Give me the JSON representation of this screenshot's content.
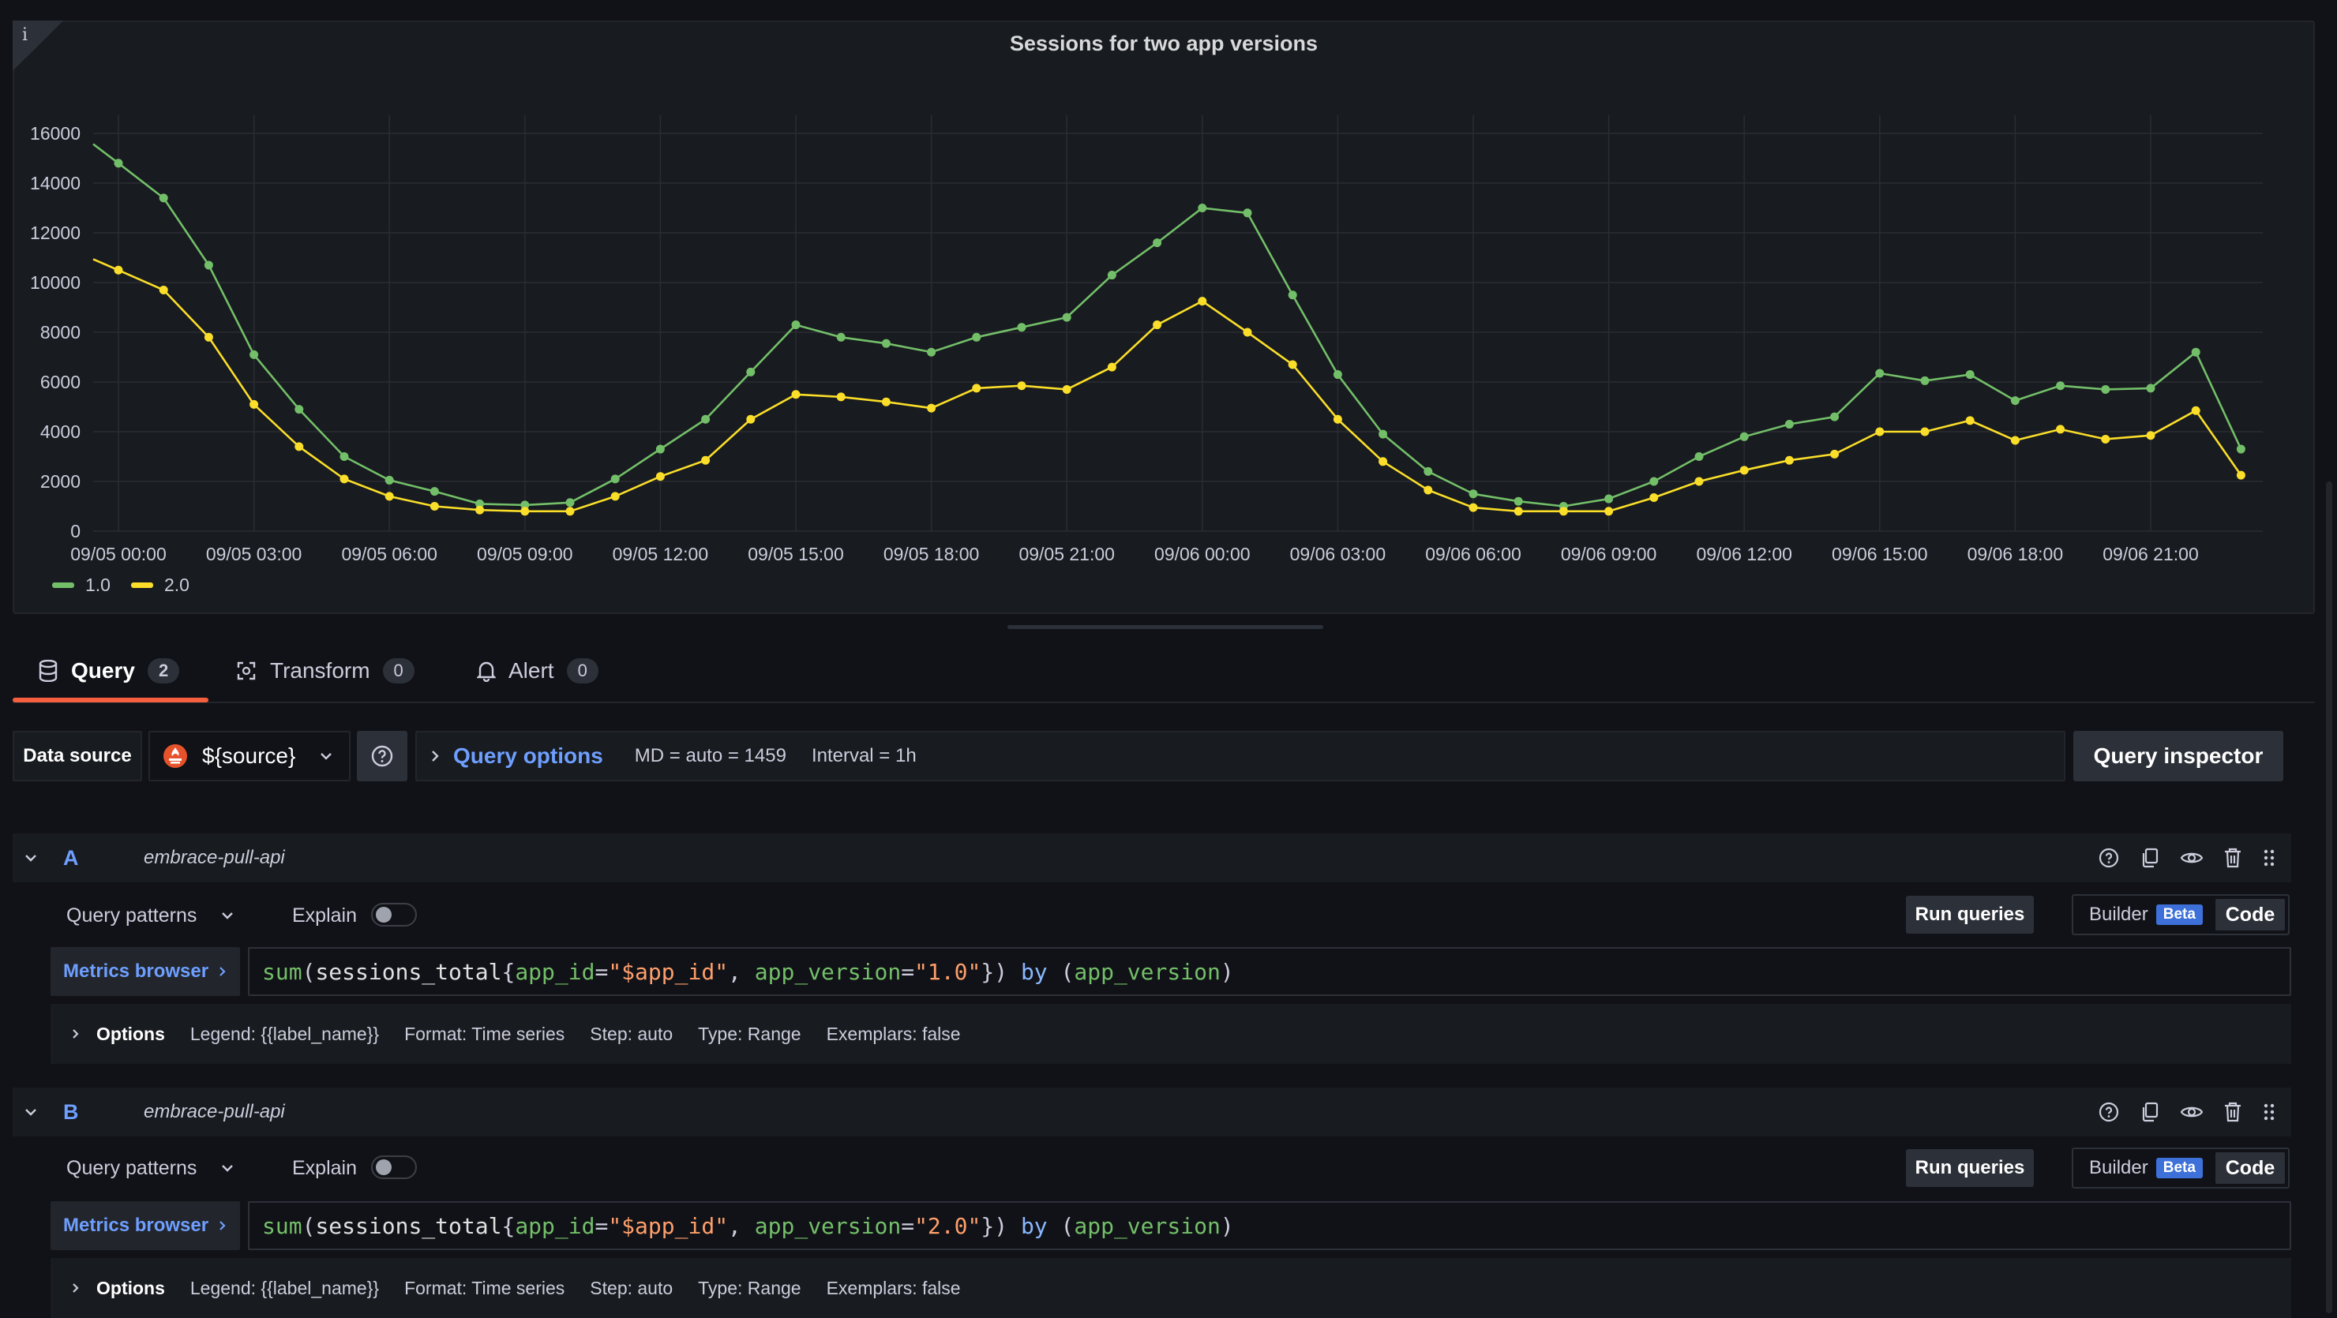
{
  "panel": {
    "title": "Sessions for two app versions",
    "info_icon": "i"
  },
  "chart_data": {
    "type": "line",
    "title": "Sessions for two app versions",
    "x": [
      "09/05 00:00",
      "09/05 01:00",
      "09/05 02:00",
      "09/05 03:00",
      "09/05 04:00",
      "09/05 05:00",
      "09/05 06:00",
      "09/05 07:00",
      "09/05 08:00",
      "09/05 09:00",
      "09/05 10:00",
      "09/05 11:00",
      "09/05 12:00",
      "09/05 13:00",
      "09/05 14:00",
      "09/05 15:00",
      "09/05 16:00",
      "09/05 17:00",
      "09/05 18:00",
      "09/05 19:00",
      "09/05 20:00",
      "09/05 21:00",
      "09/05 22:00",
      "09/05 23:00",
      "09/06 00:00",
      "09/06 01:00",
      "09/06 02:00",
      "09/06 03:00",
      "09/06 04:00",
      "09/06 05:00",
      "09/06 06:00",
      "09/06 07:00",
      "09/06 08:00",
      "09/06 09:00",
      "09/06 10:00",
      "09/06 11:00",
      "09/06 12:00",
      "09/06 13:00",
      "09/06 14:00",
      "09/06 15:00",
      "09/06 16:00",
      "09/06 17:00",
      "09/06 18:00",
      "09/06 19:00",
      "09/06 20:00",
      "09/06 21:00",
      "09/06 22:00",
      "09/06 23:00"
    ],
    "x_ticks": [
      "09/05 00:00",
      "09/05 03:00",
      "09/05 06:00",
      "09/05 09:00",
      "09/05 12:00",
      "09/05 15:00",
      "09/05 18:00",
      "09/05 21:00",
      "09/06 00:00",
      "09/06 03:00",
      "09/06 06:00",
      "09/06 09:00",
      "09/06 12:00",
      "09/06 15:00",
      "09/06 18:00",
      "09/06 21:00"
    ],
    "y_ticks": [
      "0",
      "2000",
      "4000",
      "6000",
      "8000",
      "10000",
      "12000",
      "14000",
      "16000"
    ],
    "ylim": [
      0,
      16000
    ],
    "grid": true,
    "legend": "bottom-left",
    "series": [
      {
        "name": "1.0",
        "color": "#73bf69",
        "values": [
          14800,
          13400,
          10700,
          7100,
          4900,
          3000,
          2050,
          1600,
          1100,
          1050,
          1150,
          2100,
          3300,
          4500,
          6400,
          8300,
          7800,
          7550,
          7200,
          7800,
          8200,
          8600,
          10300,
          11600,
          13000,
          12800,
          9500,
          6300,
          3900,
          2400,
          1500,
          1200,
          1000,
          1300,
          2000,
          3000,
          3800,
          4300,
          4600,
          6350,
          6050,
          6300,
          5250,
          5850,
          5700,
          5750,
          7200,
          3300
        ]
      },
      {
        "name": "2.0",
        "color": "#fade2a",
        "values": [
          10500,
          9700,
          7800,
          5100,
          3400,
          2100,
          1400,
          1000,
          850,
          800,
          800,
          1400,
          2200,
          2850,
          4500,
          5500,
          5400,
          5200,
          4950,
          5750,
          5850,
          5700,
          6600,
          8300,
          9250,
          8000,
          6700,
          4500,
          2800,
          1650,
          950,
          800,
          800,
          800,
          1350,
          2000,
          2450,
          2850,
          3100,
          4000,
          4000,
          4450,
          3650,
          4100,
          3700,
          3850,
          4850,
          2250
        ]
      }
    ]
  },
  "tabs": [
    {
      "label": "Query",
      "count": "2",
      "icon": "database-icon"
    },
    {
      "label": "Transform",
      "count": "0",
      "icon": "transform-icon"
    },
    {
      "label": "Alert",
      "count": "0",
      "icon": "bell-icon"
    }
  ],
  "toolbar": {
    "data_source_label": "Data source",
    "data_source_value": "${source}",
    "query_options_label": "Query options",
    "md_text": "MD = auto = 1459",
    "interval_text": "Interval = 1h",
    "query_inspector_label": "Query inspector"
  },
  "queries": [
    {
      "ref_id": "A",
      "datasource": "embrace-pull-api",
      "query_patterns_label": "Query patterns",
      "explain_label": "Explain",
      "run_label": "Run queries",
      "builder_label": "Builder",
      "beta_label": "Beta",
      "code_label": "Code",
      "metrics_browser_label": "Metrics browser",
      "expr": {
        "fn": "sum",
        "metric": "sessions_total",
        "l1": "app_id",
        "v1": "\"$app_id\"",
        "l2": "app_version",
        "v2": "\"1.0\"",
        "by": "by",
        "group": "app_version"
      },
      "options_label": "Options",
      "opt_legend": "Legend: {{label_name}}",
      "opt_format": "Format: Time series",
      "opt_step": "Step: auto",
      "opt_type": "Type: Range",
      "opt_exemplars": "Exemplars: false"
    },
    {
      "ref_id": "B",
      "datasource": "embrace-pull-api",
      "query_patterns_label": "Query patterns",
      "explain_label": "Explain",
      "run_label": "Run queries",
      "builder_label": "Builder",
      "beta_label": "Beta",
      "code_label": "Code",
      "metrics_browser_label": "Metrics browser",
      "expr": {
        "fn": "sum",
        "metric": "sessions_total",
        "l1": "app_id",
        "v1": "\"$app_id\"",
        "l2": "app_version",
        "v2": "\"2.0\"",
        "by": "by",
        "group": "app_version"
      },
      "options_label": "Options",
      "opt_legend": "Legend: {{label_name}}",
      "opt_format": "Format: Time series",
      "opt_step": "Step: auto",
      "opt_type": "Type: Range",
      "opt_exemplars": "Exemplars: false"
    }
  ]
}
